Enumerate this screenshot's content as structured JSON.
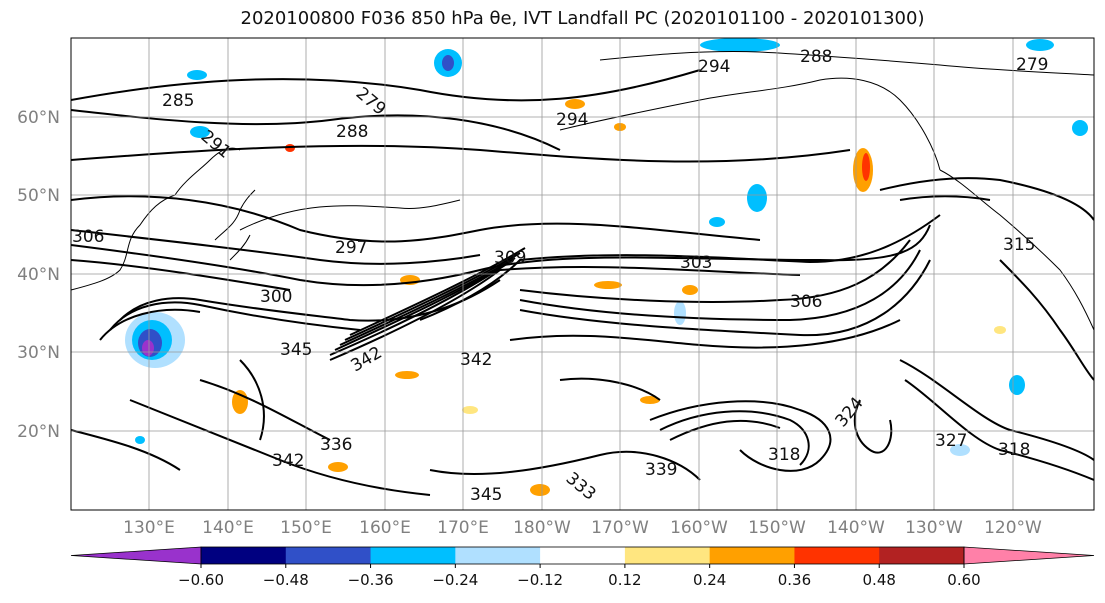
{
  "title": "2020100800 F036 850 hPa θe, IVT Landfall PC (2020101100 - 2020101300)",
  "map": {
    "lat_labels": [
      "60°N",
      "50°N",
      "40°N",
      "30°N",
      "20°N"
    ],
    "lon_labels": [
      "130°E",
      "140°E",
      "150°E",
      "160°E",
      "170°E",
      "180°W",
      "170°W",
      "160°W",
      "150°W",
      "140°W",
      "130°W",
      "120°W"
    ],
    "contour_labels": [
      "285",
      "279",
      "288",
      "294",
      "291",
      "288",
      "279",
      "294",
      "297",
      "306",
      "300",
      "309",
      "303",
      "306",
      "315",
      "345",
      "342",
      "342",
      "336",
      "342",
      "345",
      "339",
      "333",
      "318",
      "327",
      "318",
      "324"
    ],
    "colors": {
      "contour": "#000000",
      "coast": "#000000",
      "grid": "#999999",
      "positive_strong": "#ff3300",
      "positive_mid": "#ffa000",
      "positive_weak": "#ffe680",
      "negative_weak": "#b0e0ff",
      "negative_mid": "#00bfff",
      "negative_strong": "#3050c8",
      "negative_max": "#000080"
    }
  },
  "colorbar": {
    "ticks": [
      "−0.60",
      "−0.48",
      "−0.36",
      "−0.24",
      "−0.12",
      "0.12",
      "0.24",
      "0.36",
      "0.48",
      "0.60"
    ],
    "colors": [
      "#9932cc",
      "#000080",
      "#3050c8",
      "#00bfff",
      "#b0e0ff",
      "#ffffff",
      "#ffe680",
      "#ffa000",
      "#ff3300",
      "#b22222",
      "#ff80a8"
    ]
  }
}
